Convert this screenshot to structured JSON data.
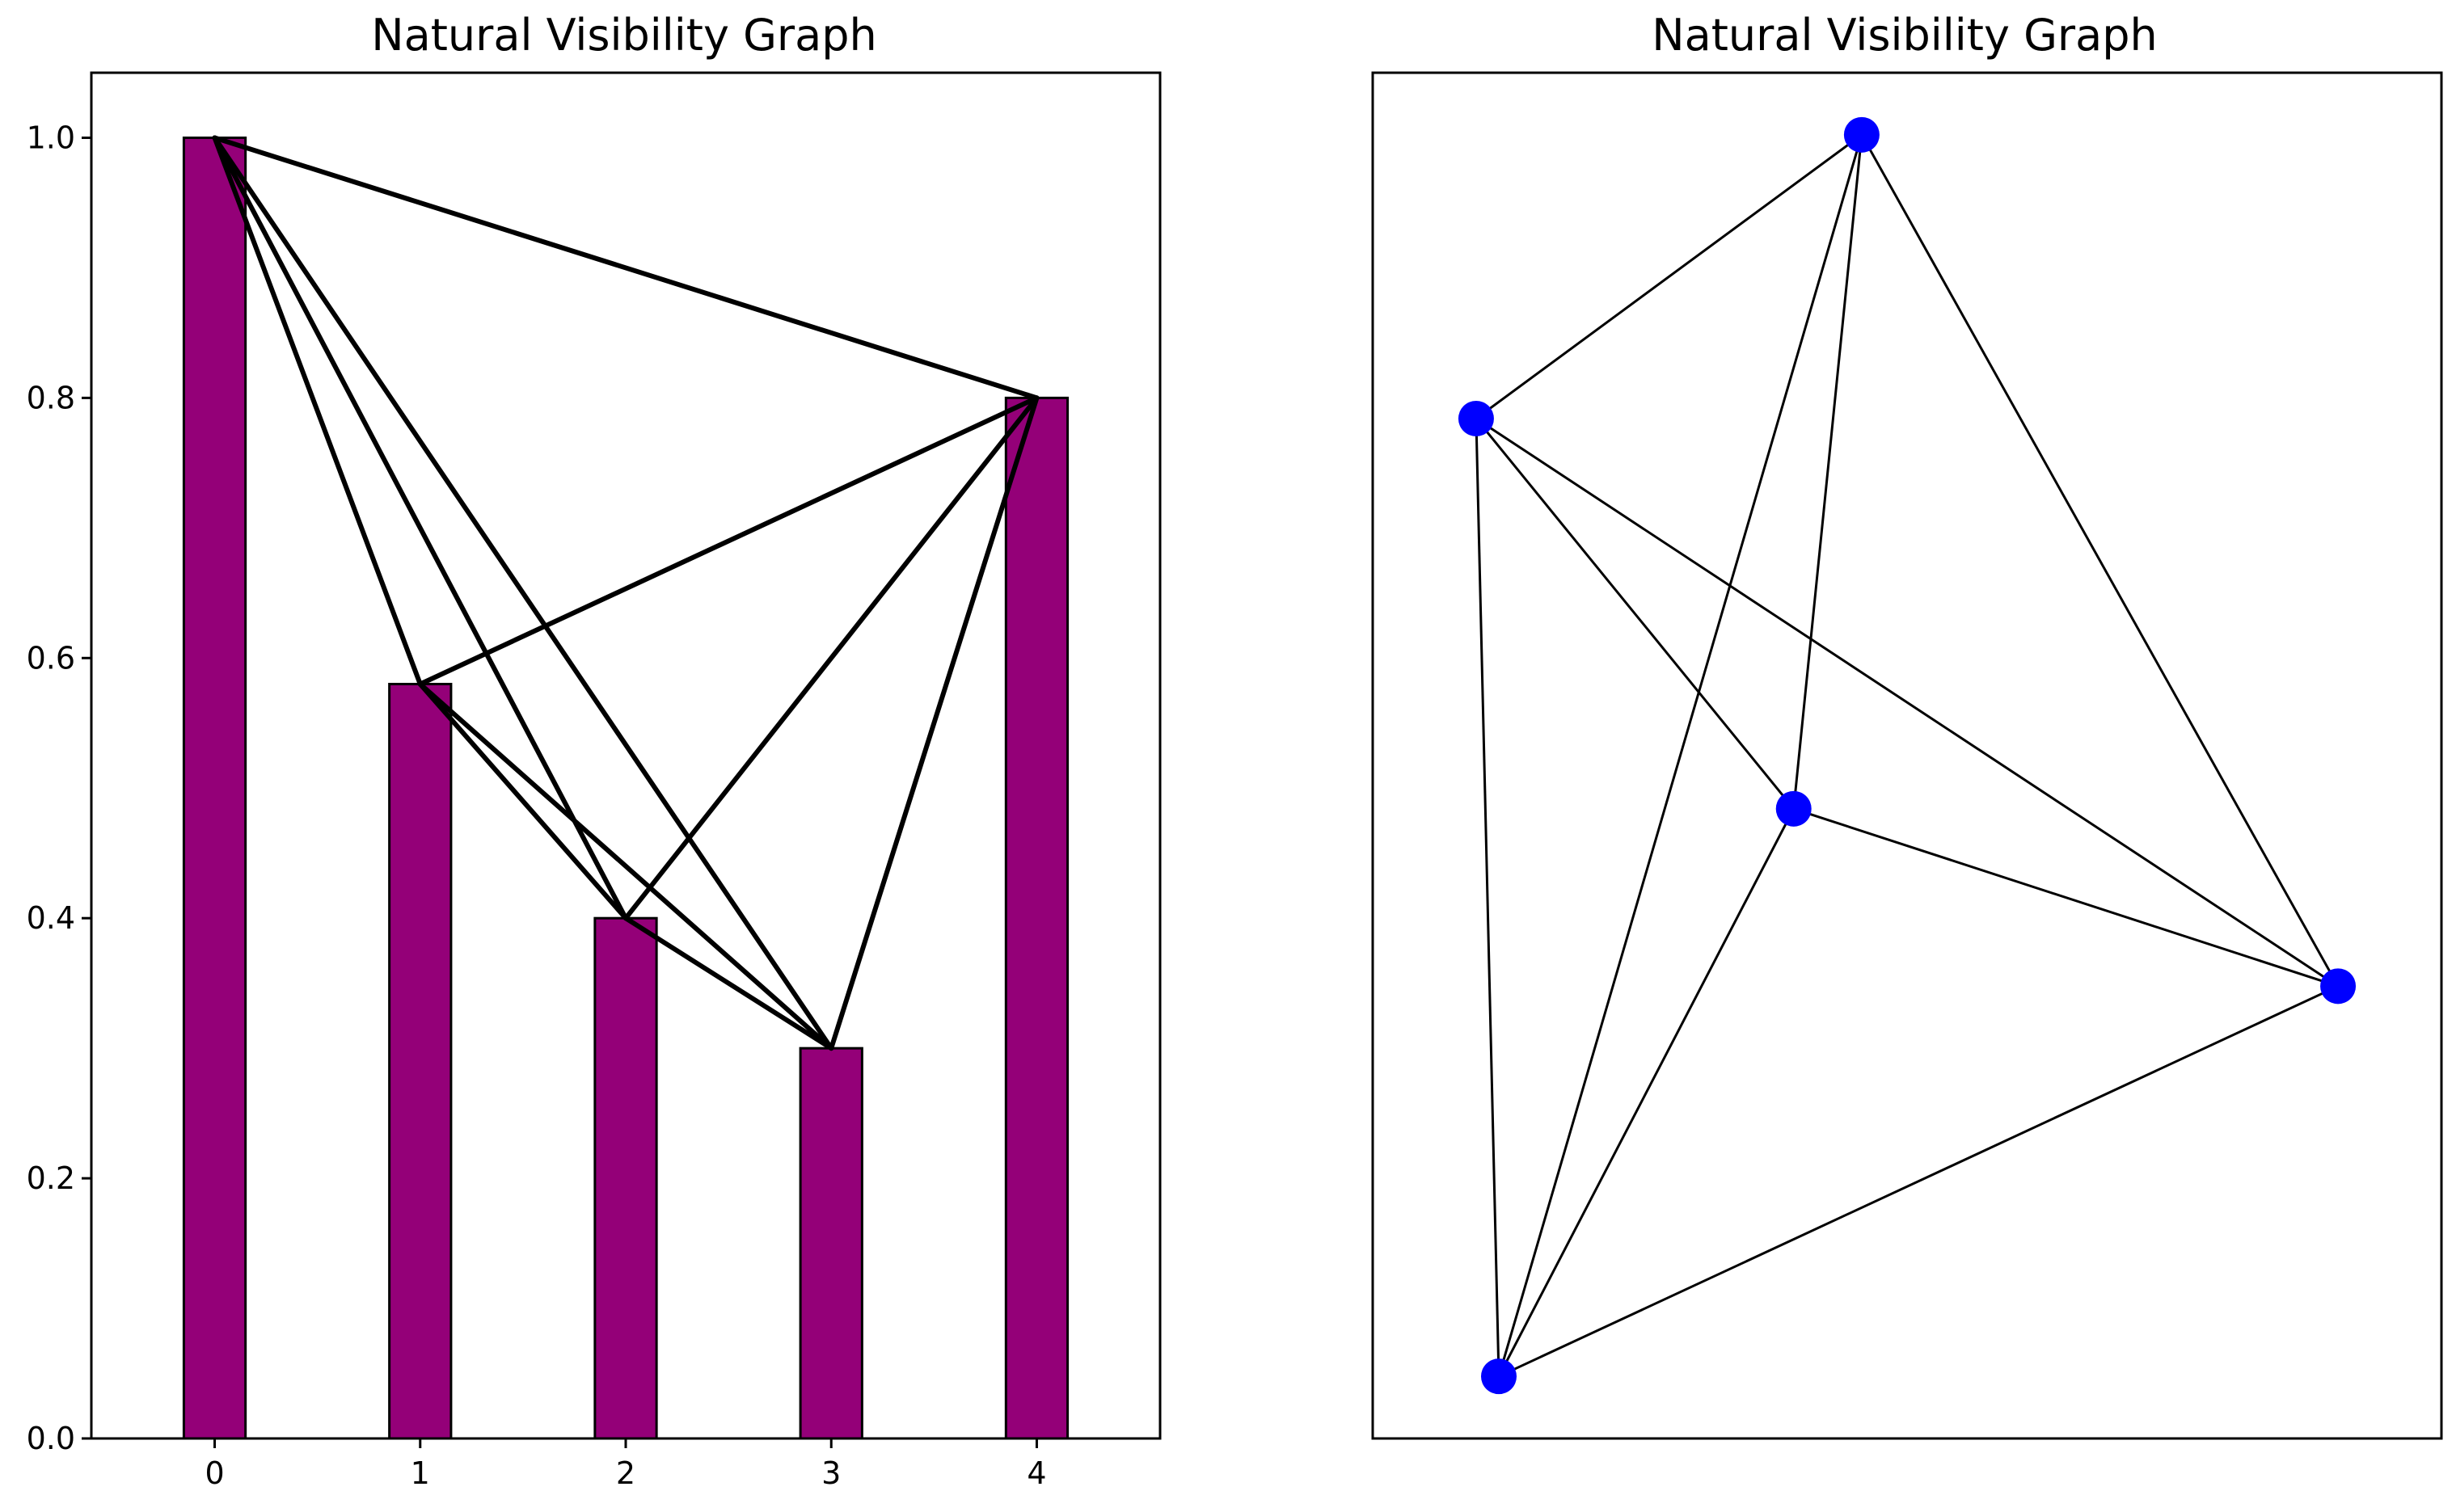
{
  "chart_data": [
    {
      "type": "bar",
      "title": "Natural Visibility Graph",
      "xlabel": "",
      "ylabel": "",
      "categories": [
        "0",
        "1",
        "2",
        "3",
        "4"
      ],
      "values": [
        1.0,
        0.58,
        0.4,
        0.3,
        0.8
      ],
      "ylim": [
        0,
        1.05
      ],
      "xlim": [
        -0.6,
        4.6
      ],
      "yticks": [
        "0.0",
        "0.2",
        "0.4",
        "0.6",
        "0.8",
        "1.0"
      ],
      "xticks": [
        "0",
        "1",
        "2",
        "3",
        "4"
      ],
      "bar_width": 0.3,
      "grid": false,
      "colors": {
        "bar": "#940078",
        "edge": "#000000",
        "link": "#000000"
      },
      "visibility_edges": [
        [
          0,
          1
        ],
        [
          0,
          2
        ],
        [
          0,
          3
        ],
        [
          0,
          4
        ],
        [
          1,
          2
        ],
        [
          1,
          3
        ],
        [
          1,
          4
        ],
        [
          2,
          3
        ],
        [
          2,
          4
        ],
        [
          3,
          4
        ]
      ]
    },
    {
      "type": "network",
      "title": "Natural Visibility Graph",
      "nodes": [
        {
          "id": 0,
          "x": -0.2,
          "y": 0.05
        },
        {
          "id": 1,
          "x": -0.85,
          "y": -0.75
        },
        {
          "id": 2,
          "x": 1.0,
          "y": -0.2
        },
        {
          "id": 3,
          "x": -0.05,
          "y": 1.0
        },
        {
          "id": 4,
          "x": -0.9,
          "y": 0.6
        }
      ],
      "node_positions_note": "",
      "edges": [
        [
          0,
          1
        ],
        [
          0,
          2
        ],
        [
          0,
          3
        ],
        [
          0,
          4
        ],
        [
          1,
          2
        ],
        [
          1,
          3
        ],
        [
          1,
          4
        ],
        [
          2,
          3
        ],
        [
          2,
          4
        ],
        [
          3,
          4
        ]
      ],
      "colors": {
        "node": "#0000ff",
        "edge": "#000000"
      }
    }
  ]
}
